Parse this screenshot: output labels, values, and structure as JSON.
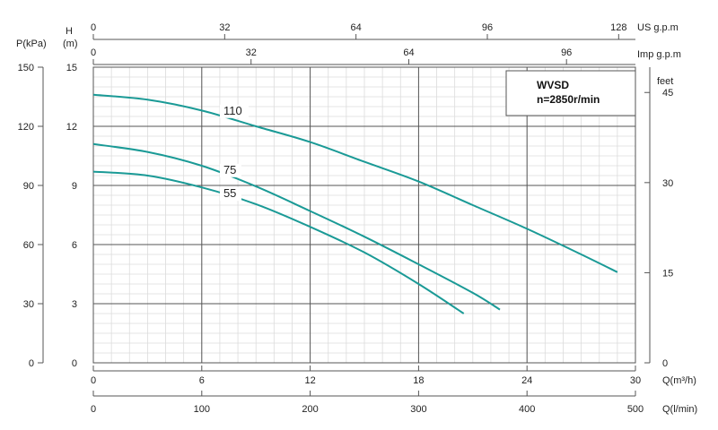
{
  "chart_data": {
    "type": "line",
    "title": "",
    "model": "WVSD",
    "speed": "n=2850r/min",
    "x_primary": {
      "label": "Q(m³/h)",
      "range": [
        0,
        30
      ],
      "ticks": [
        0,
        6,
        12,
        18,
        24,
        30
      ]
    },
    "x_secondary_bottom": {
      "label": "Q(l/min)",
      "range": [
        0,
        500
      ],
      "ticks": [
        0,
        100,
        200,
        300,
        400,
        500
      ]
    },
    "x_secondary_top_us": {
      "label": "US g.p.m",
      "ticks": [
        0,
        32,
        64,
        96,
        128
      ]
    },
    "x_secondary_top_imp": {
      "label": "Imp g.p.m",
      "ticks": [
        0,
        32,
        64,
        96
      ]
    },
    "y_primary": {
      "label": "H",
      "unit": "(m)",
      "range": [
        0,
        15
      ],
      "ticks": [
        0,
        3,
        6,
        9,
        12,
        15
      ]
    },
    "y_secondary_left": {
      "label": "P(kPa)",
      "ticks": [
        0,
        30,
        60,
        90,
        120,
        150
      ]
    },
    "y_secondary_right": {
      "label": "feet",
      "ticks": [
        0,
        15,
        30,
        45
      ]
    },
    "grid": true,
    "series": [
      {
        "name": "110",
        "color": "#1a9a96",
        "points": [
          [
            0,
            13.6
          ],
          [
            3,
            13.35
          ],
          [
            6,
            12.8
          ],
          [
            9,
            12.0
          ],
          [
            12,
            11.2
          ],
          [
            15,
            10.2
          ],
          [
            18,
            9.2
          ],
          [
            21,
            8.0
          ],
          [
            24,
            6.8
          ],
          [
            27,
            5.5
          ],
          [
            29,
            4.6
          ]
        ]
      },
      {
        "name": "75",
        "color": "#1a9a96",
        "points": [
          [
            0,
            11.1
          ],
          [
            3,
            10.7
          ],
          [
            6,
            10.0
          ],
          [
            9,
            8.95
          ],
          [
            12,
            7.7
          ],
          [
            15,
            6.4
          ],
          [
            18,
            5.0
          ],
          [
            21,
            3.55
          ],
          [
            22.5,
            2.7
          ]
        ]
      },
      {
        "name": "55",
        "color": "#1a9a96",
        "points": [
          [
            0,
            9.7
          ],
          [
            3,
            9.5
          ],
          [
            6,
            8.9
          ],
          [
            9,
            8.05
          ],
          [
            12,
            6.9
          ],
          [
            15,
            5.6
          ],
          [
            18,
            4.0
          ],
          [
            20.5,
            2.5
          ]
        ]
      }
    ],
    "curve_labels": [
      {
        "text": "110",
        "x": 7.2,
        "y": 12.6
      },
      {
        "text": "75",
        "x": 7.2,
        "y": 9.6
      },
      {
        "text": "55",
        "x": 7.2,
        "y": 8.4
      }
    ]
  }
}
